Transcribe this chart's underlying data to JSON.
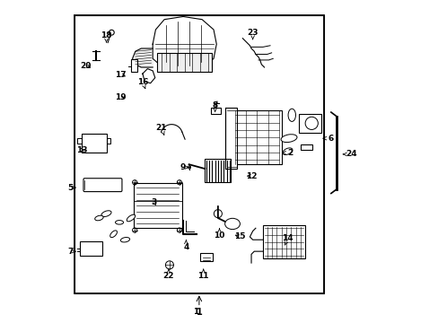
{
  "bg_color": "#ffffff",
  "border_color": "#000000",
  "line_color": "#000000",
  "label_color": "#000000",
  "fig_width": 4.89,
  "fig_height": 3.6,
  "dpi": 100,
  "label_positions": {
    "1": [
      0.44,
      -0.055,
      0,
      0
    ],
    "2": [
      0.735,
      0.495,
      0.03,
      0
    ],
    "3": [
      0.305,
      0.305,
      -0.01,
      0.02
    ],
    "4": [
      0.405,
      0.195,
      0,
      -0.025
    ],
    "5": [
      0.025,
      0.375,
      -0.02,
      0
    ],
    "6": [
      0.875,
      0.545,
      0.03,
      0
    ],
    "7": [
      0.025,
      0.155,
      -0.02,
      0
    ],
    "8": [
      0.505,
      0.635,
      0,
      0.025
    ],
    "9": [
      0.415,
      0.445,
      -0.02,
      0
    ],
    "10": [
      0.52,
      0.235,
      0,
      -0.025
    ],
    "11": [
      0.465,
      0.095,
      0,
      -0.025
    ],
    "12": [
      0.605,
      0.415,
      0.025,
      0
    ],
    "13": [
      0.065,
      0.505,
      -0.02,
      0
    ],
    "14": [
      0.745,
      0.175,
      0.01,
      0.025
    ],
    "15": [
      0.565,
      0.215,
      0.025,
      -0.01
    ],
    "16": [
      0.265,
      0.715,
      -0.01,
      0.025
    ],
    "17": [
      0.205,
      0.755,
      -0.025,
      0.01
    ],
    "18": [
      0.13,
      0.875,
      0,
      0.025
    ],
    "19": [
      0.205,
      0.685,
      -0.025,
      0
    ],
    "20": [
      0.085,
      0.785,
      -0.025,
      0.01
    ],
    "21": [
      0.33,
      0.555,
      -0.01,
      0.025
    ],
    "22": [
      0.345,
      0.095,
      0,
      -0.025
    ],
    "23": [
      0.635,
      0.885,
      0,
      0.025
    ],
    "24": [
      0.945,
      0.49,
      0.03,
      0
    ]
  }
}
